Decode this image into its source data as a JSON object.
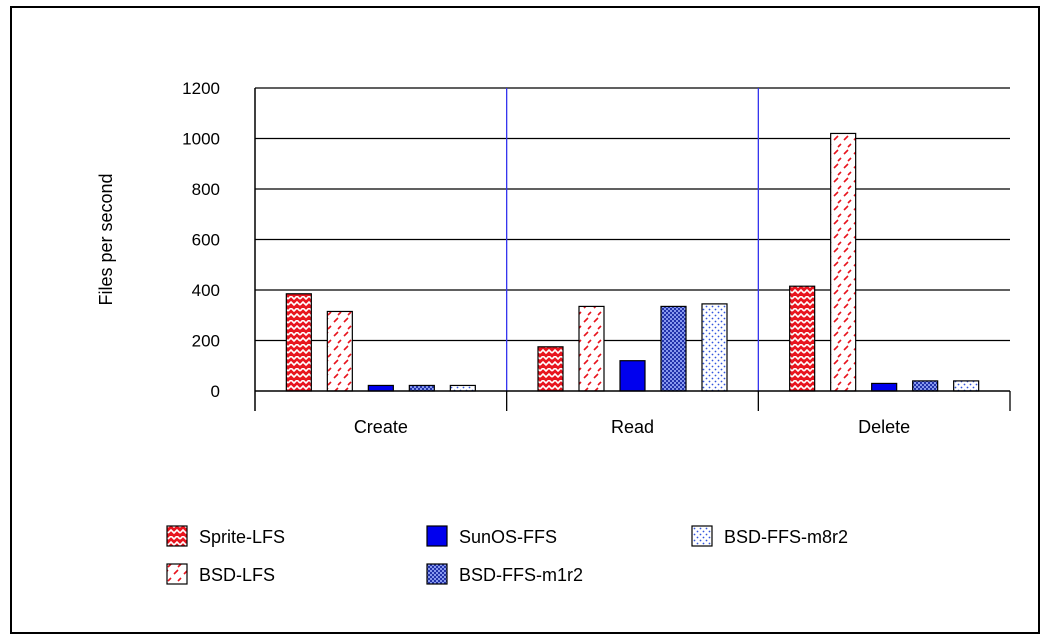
{
  "chart_data": {
    "type": "bar",
    "title": "",
    "xlabel": "",
    "ylabel": "Files per second",
    "ylim": [
      0,
      1200
    ],
    "yticks": [
      0,
      200,
      400,
      600,
      800,
      1000,
      1200
    ],
    "categories": [
      "Create",
      "Read",
      "Delete"
    ],
    "grid": true,
    "legend_position": "bottom",
    "series": [
      {
        "name": "Sprite-LFS",
        "values": [
          385,
          175,
          415
        ],
        "color": "#e8141e",
        "pattern": "zigzag-filled"
      },
      {
        "name": "BSD-LFS",
        "values": [
          315,
          335,
          1020
        ],
        "color": "#e8141e",
        "pattern": "sparse-dash"
      },
      {
        "name": "SunOS-FFS",
        "values": [
          22,
          120,
          30
        ],
        "color": "#0000ee",
        "pattern": "solid"
      },
      {
        "name": "BSD-FFS-m1r2",
        "values": [
          22,
          335,
          40
        ],
        "color": "#4055c8",
        "pattern": "checker"
      },
      {
        "name": "BSD-FFS-m8r2",
        "values": [
          22,
          345,
          40
        ],
        "color": "#3355dd",
        "pattern": "dots"
      }
    ]
  }
}
